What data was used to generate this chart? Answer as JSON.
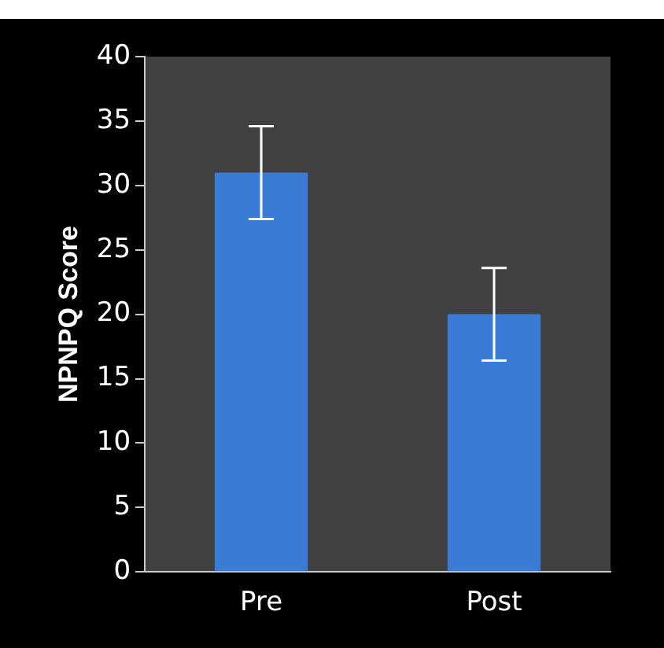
{
  "chart_data": {
    "type": "bar",
    "ylabel": "NPNPQ Score",
    "categories": [
      "Pre",
      "Post"
    ],
    "values": [
      31,
      20
    ],
    "errors": [
      3.6,
      3.6
    ],
    "color": "#3a7bd5",
    "ylim": [
      0,
      40
    ],
    "yticks": [
      0,
      5,
      10,
      15,
      20,
      25,
      30,
      35,
      40
    ],
    "grid": false
  }
}
